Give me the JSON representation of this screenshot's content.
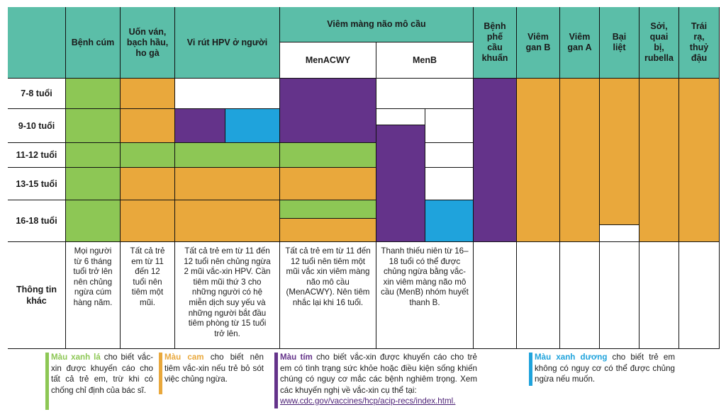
{
  "columns": {
    "flu": "Bệnh cúm",
    "tdap": "Uốn ván, bạch hầu, ho gà",
    "hpv": "Vi rút HPV ở người",
    "meningococcal": "Viêm màng não mô cầu",
    "menacwy": "MenACWY",
    "menb": "MenB",
    "pneumococcal": "Bệnh phế cầu khuẩn",
    "hepb": "Viêm gan B",
    "hepa": "Viêm gan A",
    "polio": "Bại liệt",
    "mmr": "Sởi, quai bị, rubella",
    "varicella": "Trái rạ, thuỷ đậu"
  },
  "rows": {
    "r78": "7-8 tuổi",
    "r910": "9-10 tuổi",
    "r1112": "11-12 tuổi",
    "r1315": "13-15 tuổi",
    "r1618": "16-18 tuổi",
    "other": "Thông tin khác"
  },
  "info": {
    "flu": "Mọi người từ 6 tháng tuổi trở lên nên chủng ngừa cúm hàng năm.",
    "tdap": "Tất cả trẻ em từ 11 đến 12 tuổi nên tiêm một mũi.",
    "hpv": "Tất cả trẻ em từ 11 đến 12 tuổi nên chủng ngừa 2 mũi vắc-xin HPV. Cần tiêm mũi thứ 3 cho những người có hệ miễn dịch suy yếu và những người bắt đầu tiêm phòng từ 15 tuổi trở lên.",
    "menacwy": "Tất cả trẻ em từ 11 đến 12 tuổi nên tiêm một mũi vắc xin viêm màng não mô cầu (MenACWY). Nên tiêm nhắc lại khi 16 tuổi.",
    "menb": "Thanh thiếu niên từ 16–18 tuổi có thể được chủng ngừa bằng vắc-xin viêm màng não mô cầu (MenB) nhóm huyết thanh B."
  },
  "legend": {
    "green_key": "Màu xanh lá",
    "green_text": " cho biết vắc-xin được khuyến cáo cho tất cả trẻ em, trừ khi có chống chỉ định của bác sĩ.",
    "orange_key": "Màu cam",
    "orange_text": " cho biết nên tiêm vắc-xin nếu trẻ bỏ sót việc chủng ngừa.",
    "purple_key": "Màu tím",
    "purple_text": " cho biết vắc-xin được khuyến cáo cho trẻ em có tình trạng sức khỏe hoặc điều kiện sống khiến chúng có nguy cơ mắc các bệnh nghiêm trọng. Xem các khuyến nghị về vắc-xin cụ thể tại:",
    "purple_link": "www.cdc.gov/vaccines/hcp/acip-recs/index.html.",
    "blue_key": "Màu xanh dương",
    "blue_text": " cho biết trẻ em không có nguy cơ có thể được chủng ngừa nếu muốn."
  },
  "colors": {
    "header": "#5bbea8",
    "green": "#8dc755",
    "orange": "#e9a83c",
    "purple": "#64338a",
    "blue": "#1fa3dc"
  }
}
